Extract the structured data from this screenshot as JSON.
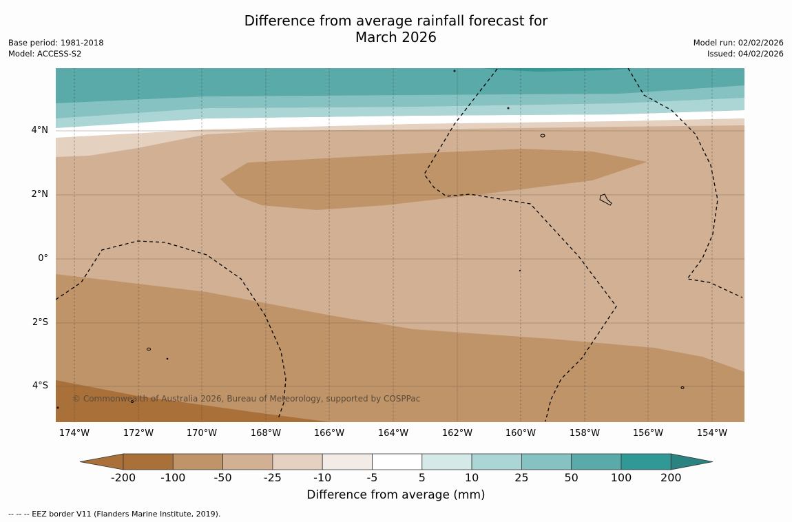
{
  "title": {
    "line1": "Difference from average rainfall forecast for",
    "line2": "March 2026"
  },
  "meta": {
    "base_period": "Base period: 1981-2018",
    "model": "Model: ACCESS-S2",
    "model_run": "Model run: 02/02/2026",
    "issued": "Issued: 04/02/2026"
  },
  "map": {
    "lat_labels": [
      "4°N",
      "2°N",
      "0°",
      "2°S",
      "4°S"
    ],
    "lon_labels": [
      "174°W",
      "172°W",
      "170°W",
      "168°W",
      "166°W",
      "164°W",
      "162°W",
      "160°W",
      "158°W",
      "156°W",
      "154°W"
    ],
    "copyright": "© Commonwealth of Australia 2026, Bureau of Meteorology, supported by COSPPac",
    "categories": [
      {
        "range": "-100 to -50",
        "color": "#c09469"
      },
      {
        "range": "-50 to -25",
        "color": "#d1b094"
      },
      {
        "range": "-25 to -10",
        "color": "#e4d1c0"
      },
      {
        "range": "25 to 50",
        "color": "#85c2c1"
      },
      {
        "range": "50 to 100",
        "color": "#5aaaaa"
      },
      {
        "range": "100 to 200",
        "color": "#309996"
      }
    ]
  },
  "colorbar": {
    "title": "Difference from average (mm)",
    "labels": [
      "-200",
      "-100",
      "-50",
      "-25",
      "-10",
      "-5",
      "5",
      "10",
      "25",
      "50",
      "100",
      "200"
    ],
    "colors": [
      "#a97139",
      "#c09469",
      "#d1b094",
      "#e4d1c0",
      "#f3ece6",
      "#ffffff",
      "#d5eae8",
      "#abd6d5",
      "#85c2c1",
      "#5aaaaa",
      "#309996",
      "#2a8380"
    ]
  },
  "footnote": "--  --  -- EEZ border V11 (Flanders Marine Institute, 2019)."
}
